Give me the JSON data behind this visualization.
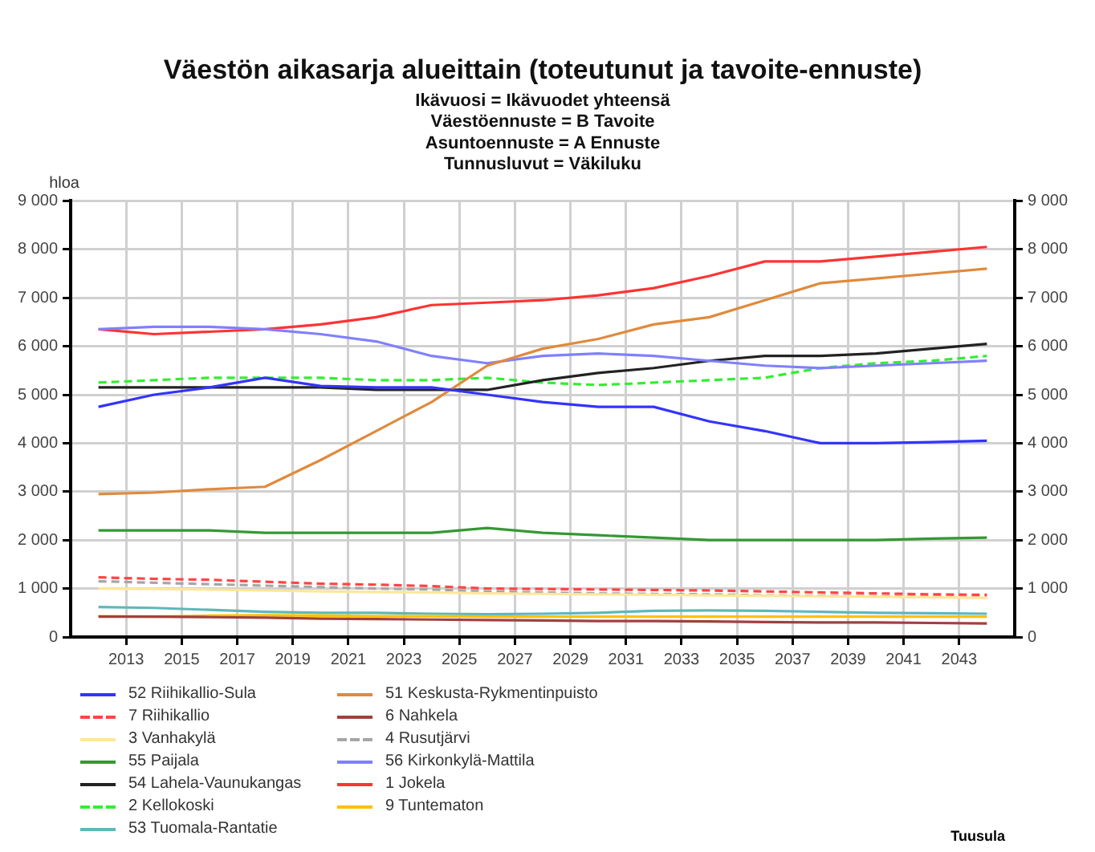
{
  "chart_data": {
    "type": "line",
    "title": "Väestön aikasarja alueittain (toteutunut ja tavoite-ennuste)",
    "subtitle": "Ikävuosi = Ikävuodet yhteensä\nVäestöennuste = B Tavoite\nAsuntoennuste = A Ennuste\nTunnusluvut = Väkiluku",
    "ylabel": "hloa",
    "annotations": [
      "Tuusula"
    ],
    "x": [
      2012,
      2014,
      2016,
      2018,
      2020,
      2022,
      2024,
      2026,
      2028,
      2030,
      2032,
      2034,
      2036,
      2038,
      2040,
      2042,
      2044
    ],
    "xlim": [
      2011,
      2045
    ],
    "xticks": [
      2013,
      2015,
      2017,
      2019,
      2021,
      2023,
      2025,
      2027,
      2029,
      2031,
      2033,
      2035,
      2037,
      2039,
      2041,
      2043
    ],
    "ylim": [
      0,
      9000
    ],
    "yticks": [
      0,
      {
        "value": 1000,
        "label": "1 000"
      },
      {
        "value": 2000,
        "label": "2 000"
      },
      {
        "value": 3000,
        "label": "3 000"
      },
      {
        "value": 4000,
        "label": "4 000"
      },
      {
        "value": 5000,
        "label": "5 000"
      },
      {
        "value": 6000,
        "label": "6 000"
      },
      {
        "value": 7000,
        "label": "7 000"
      },
      {
        "value": 8000,
        "label": "8 000"
      },
      {
        "value": 9000,
        "label": "9 000"
      }
    ],
    "y2lim": [
      0,
      9000
    ],
    "y2ticks": [
      0,
      {
        "value": 1000,
        "label": "1 000"
      },
      {
        "value": 2000,
        "label": "2 000"
      },
      {
        "value": 3000,
        "label": "3 000"
      },
      {
        "value": 4000,
        "label": "4 000"
      },
      {
        "value": 5000,
        "label": "5 000"
      },
      {
        "value": 6000,
        "label": "6 000"
      },
      {
        "value": 7000,
        "label": "7 000"
      },
      {
        "value": 8000,
        "label": "8 000"
      },
      {
        "value": 9000,
        "label": "9 000"
      }
    ],
    "grid": true,
    "legend": "bottom",
    "marker": "none",
    "series": [
      {
        "name": "52 Riihikallio-Sula",
        "color": "#3333ff",
        "line_style": "solid",
        "values": [
          4750,
          5000,
          5150,
          5350,
          5180,
          5150,
          5150,
          5000,
          4850,
          4750,
          4750,
          4450,
          4250,
          4000,
          4000,
          4020,
          4050
        ]
      },
      {
        "name": "51 Keskusta-Rykmentinpuisto",
        "color": "#e08a3c",
        "line_style": "solid",
        "values": [
          2950,
          2980,
          3050,
          3100,
          3650,
          4250,
          4850,
          5600,
          5950,
          6150,
          6450,
          6600,
          6950,
          7300,
          7400,
          7500,
          7600
        ]
      },
      {
        "name": "7 Riihikallio",
        "color": "#ff4444",
        "line_style": "dashed",
        "values": [
          1230,
          1200,
          1180,
          1140,
          1100,
          1080,
          1050,
          1000,
          990,
          980,
          970,
          960,
          940,
          920,
          900,
          880,
          870
        ]
      },
      {
        "name": "6 Nahkela",
        "color": "#a0413c",
        "line_style": "solid",
        "values": [
          420,
          420,
          410,
          400,
          380,
          370,
          360,
          350,
          340,
          330,
          330,
          320,
          310,
          300,
          300,
          290,
          280
        ]
      },
      {
        "name": "3 Vanhakylä",
        "color": "#ffe699",
        "line_style": "solid",
        "values": [
          1000,
          990,
          980,
          960,
          940,
          930,
          920,
          900,
          890,
          880,
          870,
          860,
          850,
          840,
          830,
          820,
          810
        ]
      },
      {
        "name": "4 Rusutjärvi",
        "color": "#a6a6a6",
        "line_style": "dashed",
        "values": [
          1150,
          1120,
          1090,
          1060,
          1030,
          1000,
          980,
          940,
          920,
          900,
          890,
          880,
          860,
          850,
          840,
          830,
          820
        ]
      },
      {
        "name": "55 Paijala",
        "color": "#339933",
        "line_style": "solid",
        "values": [
          2200,
          2200,
          2200,
          2150,
          2150,
          2150,
          2150,
          2250,
          2150,
          2100,
          2050,
          2000,
          2000,
          2000,
          2000,
          2030,
          2050
        ]
      },
      {
        "name": "56 Kirkonkylä-Mattila",
        "color": "#8080ff",
        "line_style": "solid",
        "values": [
          6350,
          6400,
          6400,
          6350,
          6250,
          6100,
          5800,
          5650,
          5800,
          5850,
          5800,
          5700,
          5600,
          5550,
          5600,
          5650,
          5700
        ]
      },
      {
        "name": "54 Lahela-Vaunukangas",
        "color": "#222222",
        "line_style": "solid",
        "values": [
          5150,
          5150,
          5150,
          5150,
          5150,
          5100,
          5100,
          5100,
          5300,
          5450,
          5550,
          5700,
          5800,
          5800,
          5850,
          5950,
          6050
        ]
      },
      {
        "name": "1 Jokela",
        "color": "#ff3333",
        "line_style": "solid",
        "values": [
          6350,
          6250,
          6300,
          6350,
          6450,
          6600,
          6850,
          6900,
          6950,
          7050,
          7200,
          7450,
          7750,
          7750,
          7850,
          7950,
          8050
        ]
      },
      {
        "name": "2 Kellokoski",
        "color": "#33ee33",
        "line_style": "dashed",
        "values": [
          5250,
          5300,
          5350,
          5350,
          5350,
          5300,
          5300,
          5350,
          5250,
          5200,
          5250,
          5300,
          5350,
          5550,
          5650,
          5700,
          5800
        ]
      },
      {
        "name": "9 Tuntematon",
        "color": "#ffc000",
        "line_style": "solid",
        "values": [
          430,
          420,
          440,
          450,
          440,
          430,
          430,
          420,
          420,
          420,
          420,
          420,
          420,
          420,
          420,
          420,
          420
        ]
      },
      {
        "name": "53 Tuomala-Rantatie",
        "color": "#5fb8b8",
        "line_style": "solid",
        "values": [
          620,
          600,
          560,
          520,
          500,
          500,
          480,
          470,
          480,
          500,
          540,
          550,
          540,
          520,
          500,
          490,
          480
        ]
      }
    ]
  }
}
